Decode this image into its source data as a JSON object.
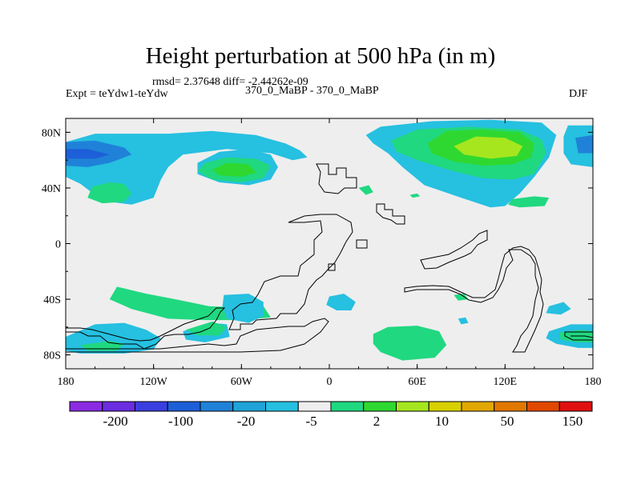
{
  "title": "Height perturbation at 500 hPa (in m)",
  "stats_line": "rmsd= 2.37648 diff= -2.44262e-09",
  "left_label": "Expt = teYdw1-teYdw",
  "center_label": "370_0_MaBP - 370_0_MaBP",
  "right_label": "DJF",
  "chart_data": {
    "type": "heatmap",
    "title": "Height perturbation at 500 hPa (in m)",
    "x_axis": {
      "range": [
        -180,
        180
      ],
      "ticks": [
        {
          "value": -180,
          "label": "180"
        },
        {
          "value": -120,
          "label": "120W"
        },
        {
          "value": -60,
          "label": "60W"
        },
        {
          "value": 0,
          "label": "0"
        },
        {
          "value": 60,
          "label": "60E"
        },
        {
          "value": 120,
          "label": "120E"
        },
        {
          "value": 180,
          "label": "180"
        }
      ]
    },
    "y_axis": {
      "range": [
        -90,
        90
      ],
      "ticks": [
        {
          "value": 80,
          "label": "80N"
        },
        {
          "value": 40,
          "label": "40N"
        },
        {
          "value": 0,
          "label": "0"
        },
        {
          "value": -40,
          "label": "40S"
        },
        {
          "value": -80,
          "label": "80S"
        }
      ]
    },
    "colorbar": {
      "colors": [
        "#8a2be2",
        "#6a2de0",
        "#3b3fe0",
        "#1d5fd8",
        "#1f82d8",
        "#1fa3d8",
        "#26c0e0",
        "#eeeeee",
        "#20d880",
        "#2fd830",
        "#a6e61f",
        "#d8d000",
        "#e0a800",
        "#e07800",
        "#e04800",
        "#e01010"
      ],
      "labels": [
        "-200",
        "-100",
        "-20",
        "-5",
        "2",
        "10",
        "50",
        "150"
      ]
    },
    "regions": [
      {
        "level": "-5",
        "color": "#26c0e0",
        "points": [
          [
            -180,
            73
          ],
          [
            -160,
            79
          ],
          [
            -110,
            79
          ],
          [
            -80,
            81
          ],
          [
            -50,
            78
          ],
          [
            -40,
            75
          ],
          [
            -30,
            72
          ],
          [
            -20,
            67
          ],
          [
            -15,
            62
          ],
          [
            -25,
            60
          ],
          [
            -40,
            65
          ],
          [
            -70,
            68
          ],
          [
            -100,
            64
          ],
          [
            -110,
            55
          ],
          [
            -115,
            46
          ],
          [
            -120,
            33
          ],
          [
            -135,
            28
          ],
          [
            -150,
            30
          ],
          [
            -160,
            35
          ],
          [
            -170,
            43
          ],
          [
            -180,
            48
          ]
        ]
      },
      {
        "level": "-5",
        "color": "#26c0e0",
        "points": [
          [
            -55,
            68
          ],
          [
            -40,
            64
          ],
          [
            -35,
            55
          ],
          [
            -40,
            46
          ],
          [
            -55,
            42
          ],
          [
            -75,
            44
          ],
          [
            -90,
            50
          ],
          [
            -90,
            58
          ],
          [
            -75,
            66
          ]
        ]
      },
      {
        "level": "-20",
        "color": "#1f82d8",
        "points": [
          [
            -180,
            73
          ],
          [
            -160,
            74
          ],
          [
            -140,
            69
          ],
          [
            -135,
            64
          ],
          [
            -150,
            58
          ],
          [
            -165,
            55
          ],
          [
            -180,
            56
          ]
        ]
      },
      {
        "level": "-20",
        "color": "#1d5fd8",
        "points": [
          [
            -180,
            68
          ],
          [
            -165,
            68
          ],
          [
            -150,
            64
          ],
          [
            -160,
            61
          ],
          [
            -180,
            61
          ]
        ]
      },
      {
        "level": "2",
        "color": "#20d880",
        "points": [
          [
            -70,
            62
          ],
          [
            -50,
            61
          ],
          [
            -40,
            56
          ],
          [
            -45,
            47
          ],
          [
            -60,
            44
          ],
          [
            -80,
            46
          ],
          [
            -90,
            52
          ],
          [
            -85,
            58
          ]
        ]
      },
      {
        "level": "10",
        "color": "#2fd830",
        "points": [
          [
            -70,
            58
          ],
          [
            -55,
            57
          ],
          [
            -50,
            51
          ],
          [
            -60,
            48
          ],
          [
            -75,
            49
          ],
          [
            -80,
            53
          ]
        ]
      },
      {
        "level": "2",
        "color": "#20d880",
        "points": [
          [
            -150,
            44
          ],
          [
            -140,
            43
          ],
          [
            -135,
            36
          ],
          [
            -140,
            30
          ],
          [
            -155,
            29
          ],
          [
            -165,
            33
          ],
          [
            -162,
            41
          ]
        ]
      },
      {
        "level": "-5",
        "color": "#26c0e0",
        "points": [
          [
            25,
            78
          ],
          [
            35,
            84
          ],
          [
            70,
            88
          ],
          [
            110,
            89
          ],
          [
            145,
            87
          ],
          [
            155,
            78
          ],
          [
            150,
            62
          ],
          [
            140,
            48
          ],
          [
            130,
            36
          ],
          [
            120,
            27
          ],
          [
            110,
            26
          ],
          [
            90,
            33
          ],
          [
            65,
            42
          ],
          [
            50,
            55
          ],
          [
            40,
            65
          ],
          [
            30,
            72
          ]
        ]
      },
      {
        "level": "2",
        "color": "#20d880",
        "points": [
          [
            42,
            74
          ],
          [
            60,
            82
          ],
          [
            95,
            84
          ],
          [
            130,
            82
          ],
          [
            145,
            75
          ],
          [
            148,
            65
          ],
          [
            140,
            50
          ],
          [
            125,
            46
          ],
          [
            105,
            47
          ],
          [
            85,
            52
          ],
          [
            60,
            60
          ],
          [
            46,
            66
          ]
        ]
      },
      {
        "level": "10",
        "color": "#2fd830",
        "points": [
          [
            67,
            72
          ],
          [
            80,
            81
          ],
          [
            105,
            82
          ],
          [
            130,
            80
          ],
          [
            140,
            72
          ],
          [
            138,
            62
          ],
          [
            125,
            57
          ],
          [
            105,
            56
          ],
          [
            85,
            59
          ],
          [
            70,
            65
          ]
        ]
      },
      {
        "level": "50",
        "color": "#a6e61f",
        "points": [
          [
            85,
            70
          ],
          [
            100,
            77
          ],
          [
            120,
            76
          ],
          [
            132,
            70
          ],
          [
            128,
            63
          ],
          [
            110,
            61
          ],
          [
            92,
            64
          ]
        ]
      },
      {
        "level": "-5",
        "color": "#26c0e0",
        "points": [
          [
            163,
            85
          ],
          [
            180,
            85
          ],
          [
            180,
            55
          ],
          [
            165,
            57
          ],
          [
            160,
            65
          ],
          [
            160,
            77
          ]
        ]
      },
      {
        "level": "-20",
        "color": "#1f82d8",
        "points": [
          [
            168,
            76
          ],
          [
            180,
            78
          ],
          [
            180,
            65
          ],
          [
            170,
            65
          ]
        ]
      },
      {
        "level": "2",
        "color": "#20d880",
        "points": [
          [
            125,
            32
          ],
          [
            140,
            34
          ],
          [
            150,
            33
          ],
          [
            147,
            27
          ],
          [
            130,
            26
          ],
          [
            122,
            28
          ]
        ]
      },
      {
        "level": "2",
        "color": "#20d880",
        "points": [
          [
            20,
            40
          ],
          [
            27,
            42
          ],
          [
            30,
            37
          ],
          [
            25,
            35
          ]
        ]
      },
      {
        "level": "2",
        "color": "#20d880",
        "points": [
          [
            55,
            35
          ],
          [
            60,
            36
          ],
          [
            62,
            34
          ],
          [
            57,
            33
          ]
        ]
      },
      {
        "level": "2",
        "color": "#20d880",
        "points": [
          [
            -145,
            -31
          ],
          [
            -125,
            -36
          ],
          [
            -105,
            -40
          ],
          [
            -82,
            -45
          ],
          [
            -60,
            -46
          ],
          [
            -45,
            -45
          ],
          [
            -40,
            -53
          ],
          [
            -60,
            -55
          ],
          [
            -85,
            -55
          ],
          [
            -110,
            -54
          ],
          [
            -135,
            -47
          ],
          [
            -150,
            -40
          ]
        ]
      },
      {
        "level": "-5",
        "color": "#26c0e0",
        "points": [
          [
            -180,
            -67
          ],
          [
            -160,
            -58
          ],
          [
            -140,
            -57
          ],
          [
            -125,
            -62
          ],
          [
            -115,
            -68
          ],
          [
            -120,
            -76
          ],
          [
            -140,
            -79
          ],
          [
            -170,
            -79
          ],
          [
            -180,
            -77
          ]
        ]
      },
      {
        "level": "2",
        "color": "#20d880",
        "points": [
          [
            -170,
            -73
          ],
          [
            -150,
            -70
          ],
          [
            -140,
            -72
          ],
          [
            -145,
            -77
          ],
          [
            -165,
            -77
          ]
        ]
      },
      {
        "level": "-5",
        "color": "#26c0e0",
        "points": [
          [
            -72,
            -37
          ],
          [
            -55,
            -36
          ],
          [
            -45,
            -42
          ],
          [
            -45,
            -52
          ],
          [
            -55,
            -57
          ],
          [
            -70,
            -54
          ],
          [
            -73,
            -45
          ]
        ]
      },
      {
        "level": "-5",
        "color": "#26c0e0",
        "points": [
          [
            -100,
            -63
          ],
          [
            -80,
            -57
          ],
          [
            -70,
            -58
          ],
          [
            -68,
            -67
          ],
          [
            -85,
            -71
          ],
          [
            -98,
            -69
          ]
        ]
      },
      {
        "level": "2",
        "color": "#20d880",
        "points": [
          [
            -98,
            -62
          ],
          [
            -80,
            -56
          ],
          [
            -70,
            -60
          ],
          [
            -75,
            -66
          ],
          [
            -90,
            -66
          ]
        ]
      },
      {
        "level": "-5",
        "color": "#26c0e0",
        "points": [
          [
            0,
            -38
          ],
          [
            10,
            -36
          ],
          [
            18,
            -42
          ],
          [
            15,
            -48
          ],
          [
            5,
            -48
          ],
          [
            -2,
            -44
          ]
        ]
      },
      {
        "level": "2",
        "color": "#20d880",
        "points": [
          [
            30,
            -65
          ],
          [
            40,
            -60
          ],
          [
            60,
            -59
          ],
          [
            75,
            -63
          ],
          [
            80,
            -73
          ],
          [
            72,
            -82
          ],
          [
            50,
            -84
          ],
          [
            35,
            -78
          ],
          [
            30,
            -72
          ]
        ]
      },
      {
        "level": "2",
        "color": "#20d880",
        "points": [
          [
            85,
            -37
          ],
          [
            92,
            -36
          ],
          [
            95,
            -40
          ],
          [
            88,
            -41
          ]
        ]
      },
      {
        "level": "-5",
        "color": "#26c0e0",
        "points": [
          [
            88,
            -54
          ],
          [
            93,
            -53
          ],
          [
            95,
            -57
          ],
          [
            90,
            -58
          ]
        ]
      },
      {
        "level": "-5",
        "color": "#26c0e0",
        "points": [
          [
            150,
            -45
          ],
          [
            160,
            -42
          ],
          [
            165,
            -47
          ],
          [
            158,
            -51
          ],
          [
            148,
            -50
          ]
        ]
      },
      {
        "level": "-5",
        "color": "#26c0e0",
        "points": [
          [
            150,
            -63
          ],
          [
            165,
            -58
          ],
          [
            180,
            -58
          ],
          [
            180,
            -75
          ],
          [
            170,
            -75
          ],
          [
            155,
            -72
          ],
          [
            148,
            -68
          ]
        ]
      },
      {
        "level": "2",
        "color": "#20d880",
        "points": [
          [
            157,
            -64
          ],
          [
            172,
            -62
          ],
          [
            180,
            -63
          ],
          [
            180,
            -71
          ],
          [
            170,
            -71
          ],
          [
            158,
            -69
          ]
        ]
      }
    ]
  }
}
